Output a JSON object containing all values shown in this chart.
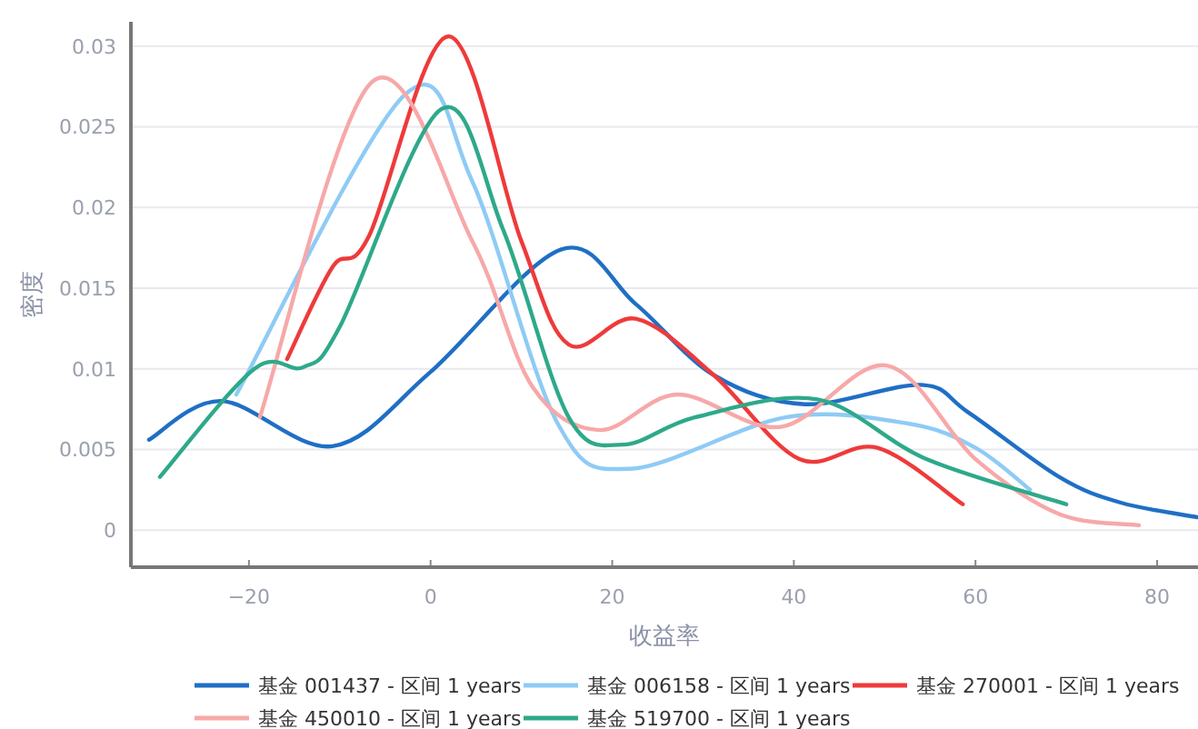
{
  "chart_data": {
    "type": "line",
    "xlabel": "收益率",
    "ylabel": "密度",
    "xlim": [
      -33,
      84.5
    ],
    "ylim": [
      -0.0023,
      0.0315
    ],
    "xticks": [
      -20,
      0,
      20,
      40,
      60,
      80
    ],
    "yticks": [
      0,
      0.005,
      0.01,
      0.015,
      0.02,
      0.025,
      0.03
    ],
    "grid": "y",
    "legend": "bottom",
    "marker": "none",
    "line_style": "solid",
    "series": [
      {
        "name": "基金 001437 - 区间 1 years",
        "color": "#1f6fc5",
        "x": [
          -31,
          -23,
          -10.8,
          0,
          14.4,
          22.6,
          31.2,
          41.2,
          54,
          59.2,
          69.2,
          76,
          84.4
        ],
        "values": [
          0.0056,
          0.008,
          0.0052,
          0.0098,
          0.0174,
          0.014,
          0.0096,
          0.0078,
          0.009,
          0.0073,
          0.0033,
          0.0017,
          0.0008
        ]
      },
      {
        "name": "基金 006158 - 区间 1 years",
        "color": "#8ecbf5",
        "x": [
          -21.4,
          -2.8,
          4.6,
          14,
          22,
          39.2,
          52.6,
          60,
          66
        ],
        "values": [
          0.0084,
          0.027,
          0.0216,
          0.0066,
          0.0038,
          0.007,
          0.0066,
          0.0051,
          0.0025
        ]
      },
      {
        "name": "基金 270001 - 区间 1 years",
        "color": "#ef3a3a",
        "x": [
          -15.8,
          -10.8,
          -6.8,
          2,
          10,
          15.2,
          22.6,
          31.2,
          40.6,
          49.2,
          58.6
        ],
        "values": [
          0.0106,
          0.0163,
          0.0182,
          0.0306,
          0.0179,
          0.0115,
          0.0131,
          0.0096,
          0.0044,
          0.0051,
          0.0016
        ]
      },
      {
        "name": "基金 450010 - 区间 1 years",
        "color": "#f7a8a8",
        "x": [
          -18.8,
          -6.4,
          4.6,
          11.2,
          18.6,
          27.2,
          38.6,
          50.2,
          60,
          69.2,
          78
        ],
        "values": [
          0.007,
          0.0278,
          0.0179,
          0.0089,
          0.0062,
          0.0084,
          0.0064,
          0.0102,
          0.0044,
          0.001,
          0.0003
        ]
      },
      {
        "name": "基金 519700 - 区间 1 years",
        "color": "#2ea98a",
        "x": [
          -29.8,
          -19.4,
          -14,
          -10,
          1.2,
          8,
          15.2,
          21.2,
          29.2,
          42.6,
          54.6,
          70
        ],
        "values": [
          0.0033,
          0.01,
          0.0101,
          0.0126,
          0.0261,
          0.0186,
          0.007,
          0.0053,
          0.007,
          0.0081,
          0.0044,
          0.0016
        ]
      }
    ]
  }
}
